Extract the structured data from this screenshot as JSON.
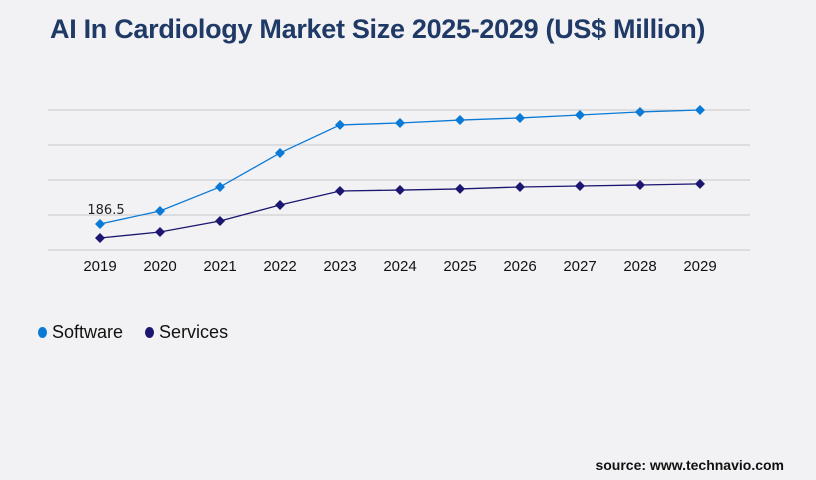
{
  "chart_data": {
    "type": "line",
    "title": "AI In Cardiology Market Size 2025-2029 (US$ Million)",
    "categories": [
      "2019",
      "2020",
      "2021",
      "2022",
      "2023",
      "2024",
      "2025",
      "2026",
      "2027",
      "2028",
      "2029"
    ],
    "series": [
      {
        "name": "Software",
        "color": "#0a7ad6",
        "values": [
          186.5,
          280,
          452,
          696,
          897,
          911,
          932,
          947,
          968,
          990,
          1004
        ]
      },
      {
        "name": "Services",
        "color": "#1c1670",
        "values": [
          86,
          129,
          208,
          323,
          423,
          430,
          438,
          452,
          459,
          466,
          474
        ]
      }
    ],
    "data_labels": [
      {
        "series": "Software",
        "category": "2019",
        "text": "186.5"
      }
    ],
    "ylim": [
      0,
      1004
    ],
    "yticks": [
      0,
      251,
      502,
      753,
      1004
    ],
    "y_tick_labels_shown": false,
    "grid": true,
    "legend_position": "bottom-left"
  },
  "source": "source: www.technavio.com"
}
